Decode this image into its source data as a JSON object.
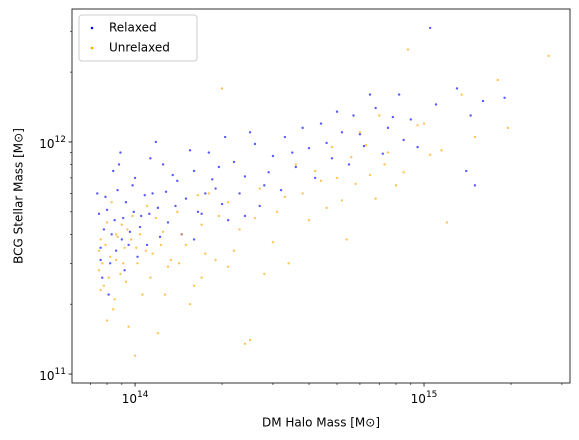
{
  "chart_data": {
    "type": "scatter",
    "xlabel": "DM Halo Mass [M⊙]",
    "ylabel": "BCG Stellar Mass [M⊙]",
    "xscale": "log",
    "yscale": "log",
    "legend": "upper left",
    "xlim": [
      60500000000000.0,
      3200000000000000.0
    ],
    "ylim": [
      91500000000.0,
      3740000000000.0
    ],
    "xticks": [
      {
        "value": 100000000000000.0,
        "label": "10^14"
      },
      {
        "value": 1000000000000000.0,
        "label": "10^15"
      }
    ],
    "yticks": [
      {
        "value": 100000000000.0,
        "label": "10^11"
      },
      {
        "value": 1000000000000.0,
        "label": "10^12"
      }
    ],
    "xminorticks": [
      70000000000000.0,
      80000000000000.0,
      90000000000000.0,
      200000000000000.0,
      300000000000000.0,
      400000000000000.0,
      500000000000000.0,
      600000000000000.0,
      700000000000000.0,
      800000000000000.0,
      900000000000000.0,
      2000000000000000.0,
      3000000000000000.0
    ],
    "yminorticks": [
      200000000000.0,
      300000000000.0,
      400000000000.0,
      500000000000.0,
      600000000000.0,
      700000000000.0,
      800000000000.0,
      900000000000.0,
      2000000000000.0,
      3000000000000.0
    ],
    "series": [
      {
        "name": "Relaxed",
        "color": "#0000ff",
        "x": [
          76000000000000.0,
          78000000000000.0,
          80000000000000.0,
          82000000000000.0,
          85000000000000.0,
          87000000000000.0,
          90000000000000.0,
          93000000000000.0,
          96000000000000.0,
          100000000000000.0,
          105000000000000.0,
          110000000000000.0,
          115000000000000.0,
          120000000000000.0,
          125000000000000.0,
          130000000000000.0,
          140000000000000.0,
          150000000000000.0,
          160000000000000.0,
          170000000000000.0,
          180000000000000.0,
          190000000000000.0,
          200000000000000.0,
          220000000000000.0,
          240000000000000.0,
          260000000000000.0,
          280000000000000.0,
          300000000000000.0,
          330000000000000.0,
          360000000000000.0,
          400000000000000.0,
          440000000000000.0,
          480000000000000.0,
          520000000000000.0,
          570000000000000.0,
          620000000000000.0,
          680000000000000.0,
          750000000000000.0,
          820000000000000.0,
          900000000000000.0,
          1050000000000000.0,
          1300000000000000.0,
          1450000000000000.0,
          1600000000000000.0,
          1900000000000000.0,
          77000000000000.0,
          81000000000000.0,
          84000000000000.0,
          89000000000000.0,
          92000000000000.0,
          98000000000000.0,
          102000000000000.0,
          108000000000000.0,
          113000000000000.0,
          122000000000000.0,
          135000000000000.0,
          145000000000000.0,
          155000000000000.0,
          165000000000000.0,
          185000000000000.0,
          210000000000000.0,
          230000000000000.0,
          250000000000000.0,
          270000000000000.0,
          290000000000000.0,
          320000000000000.0,
          350000000000000.0,
          380000000000000.0,
          420000000000000.0,
          460000000000000.0,
          500000000000000.0,
          550000000000000.0,
          600000000000000.0,
          650000000000000.0,
          720000000000000.0,
          780000000000000.0,
          850000000000000.0,
          950000000000000.0,
          1100000000000000.0,
          1400000000000000.0,
          1500000000000000.0,
          75000000000000.0,
          76000000000000.0,
          79000000000000.0,
          83000000000000.0,
          86000000000000.0,
          91000000000000.0,
          95000000000000.0,
          99000000000000.0,
          104000000000000.0,
          112000000000000.0,
          128000000000000.0,
          138000000000000.0,
          175000000000000.0,
          195000000000000.0,
          205000000000000.0,
          74000000000000.0,
          88000000000000.0,
          118000000000000.0,
          160000000000000.0,
          240000000000000.0
        ],
        "values": [
          350000000000.0,
          420000000000.0,
          510000000000.0,
          300000000000.0,
          460000000000.0,
          620000000000.0,
          380000000000.0,
          550000000000.0,
          410000000000.0,
          700000000000.0,
          480000000000.0,
          360000000000.0,
          600000000000.0,
          520000000000.0,
          800000000000.0,
          450000000000.0,
          680000000000.0,
          570000000000.0,
          750000000000.0,
          490000000000.0,
          900000000000.0,
          630000000000.0,
          540000000000.0,
          820000000000.0,
          710000000000.0,
          980000000000.0,
          650000000000.0,
          870000000000.0,
          1050000000000.0,
          780000000000.0,
          940000000000.0,
          1200000000000.0,
          850000000000.0,
          1100000000000.0,
          1300000000000.0,
          960000000000.0,
          1400000000000.0,
          1150000000000.0,
          1600000000000.0,
          1250000000000.0,
          3100000000000.0,
          1700000000000.0,
          1300000000000.0,
          1500000000000.0,
          1550000000000.0,
          260000000000.0,
          220000000000.0,
          750000000000.0,
          900000000000.0,
          280000000000.0,
          650000000000.0,
          320000000000.0,
          590000000000.0,
          850000000000.0,
          390000000000.0,
          720000000000.0,
          400000000000.0,
          920000000000.0,
          500000000000.0,
          690000000000.0,
          460000000000.0,
          600000000000.0,
          1100000000000.0,
          530000000000.0,
          740000000000.0,
          620000000000.0,
          900000000000.0,
          1150000000000.0,
          700000000000.0,
          990000000000.0,
          1350000000000.0,
          800000000000.0,
          1080000000000.0,
          1600000000000.0,
          890000000000.0,
          1280000000000.0,
          1020000000000.0,
          950000000000.0,
          1450000000000.0,
          750000000000.0,
          650000000000.0,
          490000000000.0,
          310000000000.0,
          580000000000.0,
          400000000000.0,
          340000000000.0,
          470000000000.0,
          360000000000.0,
          500000000000.0,
          430000000000.0,
          490000000000.0,
          610000000000.0,
          530000000000.0,
          600000000000.0,
          780000000000.0,
          1050000000000.0,
          600000000000.0,
          800000000000.0,
          1000000000000.0,
          380000000000.0,
          480000000000.0
        ]
      },
      {
        "name": "Unrelaxed",
        "color": "#ffa500",
        "x": [
          75000000000000.0,
          76000000000000.0,
          78000000000000.0,
          80000000000000.0,
          82000000000000.0,
          84000000000000.0,
          86000000000000.0,
          89000000000000.0,
          92000000000000.0,
          95000000000000.0,
          98000000000000.0,
          102000000000000.0,
          106000000000000.0,
          110000000000000.0,
          115000000000000.0,
          120000000000000.0,
          125000000000000.0,
          130000000000000.0,
          140000000000000.0,
          150000000000000.0,
          160000000000000.0,
          170000000000000.0,
          180000000000000.0,
          190000000000000.0,
          200000000000000.0,
          210000000000000.0,
          230000000000000.0,
          250000000000000.0,
          270000000000000.0,
          300000000000000.0,
          330000000000000.0,
          360000000000000.0,
          400000000000000.0,
          440000000000000.0,
          480000000000000.0,
          520000000000000.0,
          560000000000000.0,
          600000000000000.0,
          650000000000000.0,
          700000000000000.0,
          750000000000000.0,
          800000000000000.0,
          880000000000000.0,
          950000000000000.0,
          1050000000000000.0,
          1200000000000000.0,
          1350000000000000.0,
          1500000000000000.0,
          1800000000000000.0,
          1950000000000000.0,
          2700000000000000.0,
          77000000000000.0,
          79000000000000.0,
          81000000000000.0,
          83000000000000.0,
          85000000000000.0,
          87000000000000.0,
          90000000000000.0,
          93000000000000.0,
          97000000000000.0,
          100000000000000.0,
          104000000000000.0,
          109000000000000.0,
          113000000000000.0,
          118000000000000.0,
          123000000000000.0,
          133000000000000.0,
          145000000000000.0,
          155000000000000.0,
          165000000000000.0,
          175000000000000.0,
          195000000000000.0,
          220000000000000.0,
          240000000000000.0,
          260000000000000.0,
          280000000000000.0,
          310000000000000.0,
          340000000000000.0,
          380000000000000.0,
          420000000000000.0,
          460000000000000.0,
          500000000000000.0,
          540000000000000.0,
          580000000000000.0,
          630000000000000.0,
          680000000000000.0,
          730000000000000.0,
          850000000000000.0,
          1000000000000000.0,
          1150000000000000.0,
          75000000000000.0,
          76000000000000.0,
          80000000000000.0,
          86000000000000.0,
          91000000000000.0,
          94000000000000.0,
          101000000000000.0,
          127000000000000.0,
          142000000000000.0,
          170000000000000.0,
          210000000000000.0
        ],
        "values": [
          280000000000.0,
          380000000000.0,
          240000000000.0,
          450000000000.0,
          320000000000.0,
          190000000000.0,
          400000000000.0,
          270000000000.0,
          350000000000.0,
          160000000000.0,
          480000000000.0,
          300000000000.0,
          220000000000.0,
          530000000000.0,
          330000000000.0,
          150000000000.0,
          410000000000.0,
          290000000000.0,
          500000000000.0,
          360000000000.0,
          240000000000.0,
          440000000000.0,
          600000000000.0,
          310000000000.0,
          1700000000000.0,
          550000000000.0,
          420000000000.0,
          140000000000.0,
          630000000000.0,
          370000000000.0,
          580000000000.0,
          800000000000.0,
          460000000000.0,
          680000000000.0,
          950000000000.0,
          560000000000.0,
          860000000000.0,
          1100000000000.0,
          720000000000.0,
          1300000000000.0,
          900000000000.0,
          650000000000.0,
          2500000000000.0,
          1180000000000.0,
          880000000000.0,
          450000000000.0,
          1600000000000.0,
          1050000000000.0,
          1850000000000.0,
          1150000000000.0,
          2350000000000.0,
          300000000000.0,
          360000000000.0,
          260000000000.0,
          550000000000.0,
          210000000000.0,
          390000000000.0,
          440000000000.0,
          250000000000.0,
          380000000000.0,
          120000000000.0,
          400000000000.0,
          340000000000.0,
          260000000000.0,
          470000000000.0,
          360000000000.0,
          310000000000.0,
          400000000000.0,
          200000000000.0,
          590000000000.0,
          330000000000.0,
          480000000000.0,
          340000000000.0,
          135000000000.0,
          470000000000.0,
          270000000000.0,
          500000000000.0,
          300000000000.0,
          600000000000.0,
          750000000000.0,
          520000000000.0,
          700000000000.0,
          380000000000.0,
          660000000000.0,
          970000000000.0,
          570000000000.0,
          800000000000.0,
          740000000000.0,
          1200000000000.0,
          920000000000.0,
          340000000000.0,
          230000000000.0,
          170000000000.0,
          310000000000.0,
          300000000000.0,
          420000000000.0,
          350000000000.0,
          220000000000.0,
          300000000000.0,
          260000000000.0,
          290000000000.0
        ]
      }
    ]
  }
}
